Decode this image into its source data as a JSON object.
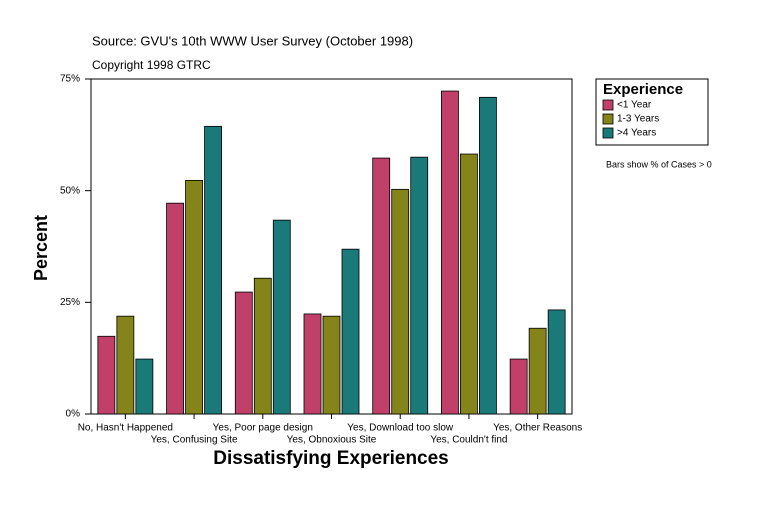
{
  "chart_data": {
    "type": "bar",
    "source": "Source: GVU's 10th WWW User Survey (October 1998)",
    "copyright": "Copyright 1998 GTRC",
    "x_label": "Dissatisfying Experiences",
    "y_label": "Percent",
    "legend_title": "Experience",
    "legend": "right",
    "note": "Bars show % of Cases > 0",
    "categories": [
      "No, Hasn't Happened",
      "Yes, Confusing Site",
      "Yes, Poor page design",
      "Yes, Obnoxious Site",
      "Yes, Download too slow",
      "Yes, Couldn't find",
      "Yes, Other Reasons"
    ],
    "series": [
      {
        "name": "<1 Year",
        "color": "#c0406a",
        "values": [
          17.4,
          47.2,
          27.3,
          22.4,
          57.3,
          72.3,
          12.3
        ]
      },
      {
        "name": "1-3 Years",
        "color": "#84841a",
        "values": [
          21.9,
          52.3,
          30.4,
          21.9,
          50.3,
          58.2,
          19.2
        ]
      },
      {
        "name": ">4 Years",
        "color": "#1a7a7a",
        "values": [
          12.3,
          64.4,
          43.4,
          36.9,
          57.5,
          70.9,
          23.3
        ]
      }
    ],
    "ylim": [
      0,
      75
    ],
    "yticks": [
      {
        "value": 0,
        "label": "0%"
      },
      {
        "value": 25,
        "label": "25%"
      },
      {
        "value": 50,
        "label": "50%"
      },
      {
        "value": 75,
        "label": "75%"
      }
    ]
  }
}
